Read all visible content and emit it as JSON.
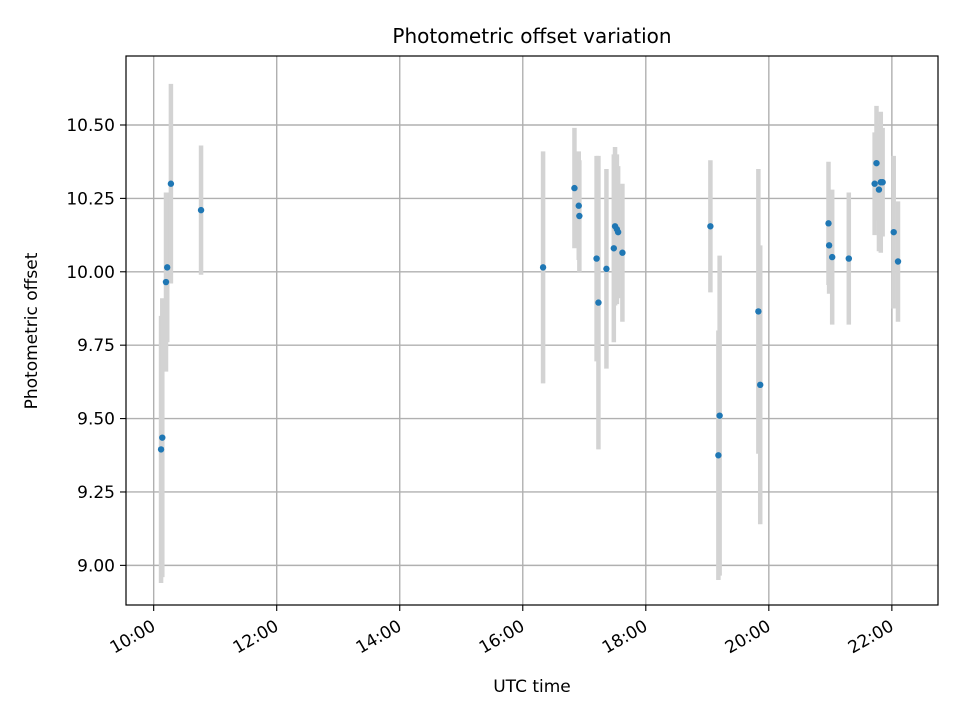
{
  "chart_data": {
    "type": "scatter",
    "title": "Photometric offset variation",
    "xlabel": "UTC time",
    "ylabel": "Photometric offset",
    "x_unit": "hours UTC",
    "xlim": [
      9.55,
      22.75
    ],
    "ylim": [
      8.865,
      10.735
    ],
    "x_ticks": [
      10,
      12,
      14,
      16,
      18,
      20,
      22
    ],
    "x_tick_labels": [
      "10:00",
      "12:00",
      "14:00",
      "16:00",
      "18:00",
      "20:00",
      "22:00"
    ],
    "y_ticks": [
      9.0,
      9.25,
      9.5,
      9.75,
      10.0,
      10.25,
      10.5
    ],
    "y_tick_labels": [
      "9.00",
      "9.25",
      "9.50",
      "9.75",
      "10.00",
      "10.25",
      "10.50"
    ],
    "grid": true,
    "colors": {
      "points": "#1f77b4",
      "error_bars": "#d3d3d3"
    },
    "points": [
      {
        "x": 10.12,
        "y": 9.395,
        "err": 0.455
      },
      {
        "x": 10.14,
        "y": 9.435,
        "err": 0.475
      },
      {
        "x": 10.2,
        "y": 9.965,
        "err": 0.305
      },
      {
        "x": 10.22,
        "y": 10.015,
        "err": 0.255
      },
      {
        "x": 10.28,
        "y": 10.3,
        "err": 0.34
      },
      {
        "x": 10.77,
        "y": 10.21,
        "err": 0.22
      },
      {
        "x": 16.33,
        "y": 10.015,
        "err": 0.395
      },
      {
        "x": 16.84,
        "y": 10.285,
        "err": 0.205
      },
      {
        "x": 16.91,
        "y": 10.225,
        "err": 0.185
      },
      {
        "x": 16.92,
        "y": 10.19,
        "err": 0.19
      },
      {
        "x": 17.2,
        "y": 10.045,
        "err": 0.35
      },
      {
        "x": 17.23,
        "y": 9.895,
        "err": 0.5
      },
      {
        "x": 17.36,
        "y": 10.01,
        "err": 0.34
      },
      {
        "x": 17.48,
        "y": 10.08,
        "err": 0.32
      },
      {
        "x": 17.5,
        "y": 10.155,
        "err": 0.27
      },
      {
        "x": 17.53,
        "y": 10.145,
        "err": 0.255
      },
      {
        "x": 17.55,
        "y": 10.135,
        "err": 0.225
      },
      {
        "x": 17.62,
        "y": 10.065,
        "err": 0.235
      },
      {
        "x": 19.05,
        "y": 10.155,
        "err": 0.225
      },
      {
        "x": 19.18,
        "y": 9.375,
        "err": 0.425
      },
      {
        "x": 19.2,
        "y": 9.51,
        "err": 0.545
      },
      {
        "x": 19.83,
        "y": 9.865,
        "err": 0.485
      },
      {
        "x": 19.86,
        "y": 9.615,
        "err": 0.475
      },
      {
        "x": 20.97,
        "y": 10.165,
        "err": 0.21
      },
      {
        "x": 20.98,
        "y": 10.09,
        "err": 0.165
      },
      {
        "x": 21.03,
        "y": 10.05,
        "err": 0.23
      },
      {
        "x": 21.3,
        "y": 10.045,
        "err": 0.225
      },
      {
        "x": 21.72,
        "y": 10.3,
        "err": 0.175
      },
      {
        "x": 21.75,
        "y": 10.37,
        "err": 0.195
      },
      {
        "x": 21.79,
        "y": 10.28,
        "err": 0.21
      },
      {
        "x": 21.82,
        "y": 10.305,
        "err": 0.24
      },
      {
        "x": 21.85,
        "y": 10.305,
        "err": 0.185
      },
      {
        "x": 22.03,
        "y": 10.135,
        "err": 0.26
      },
      {
        "x": 22.1,
        "y": 10.035,
        "err": 0.205
      }
    ]
  }
}
